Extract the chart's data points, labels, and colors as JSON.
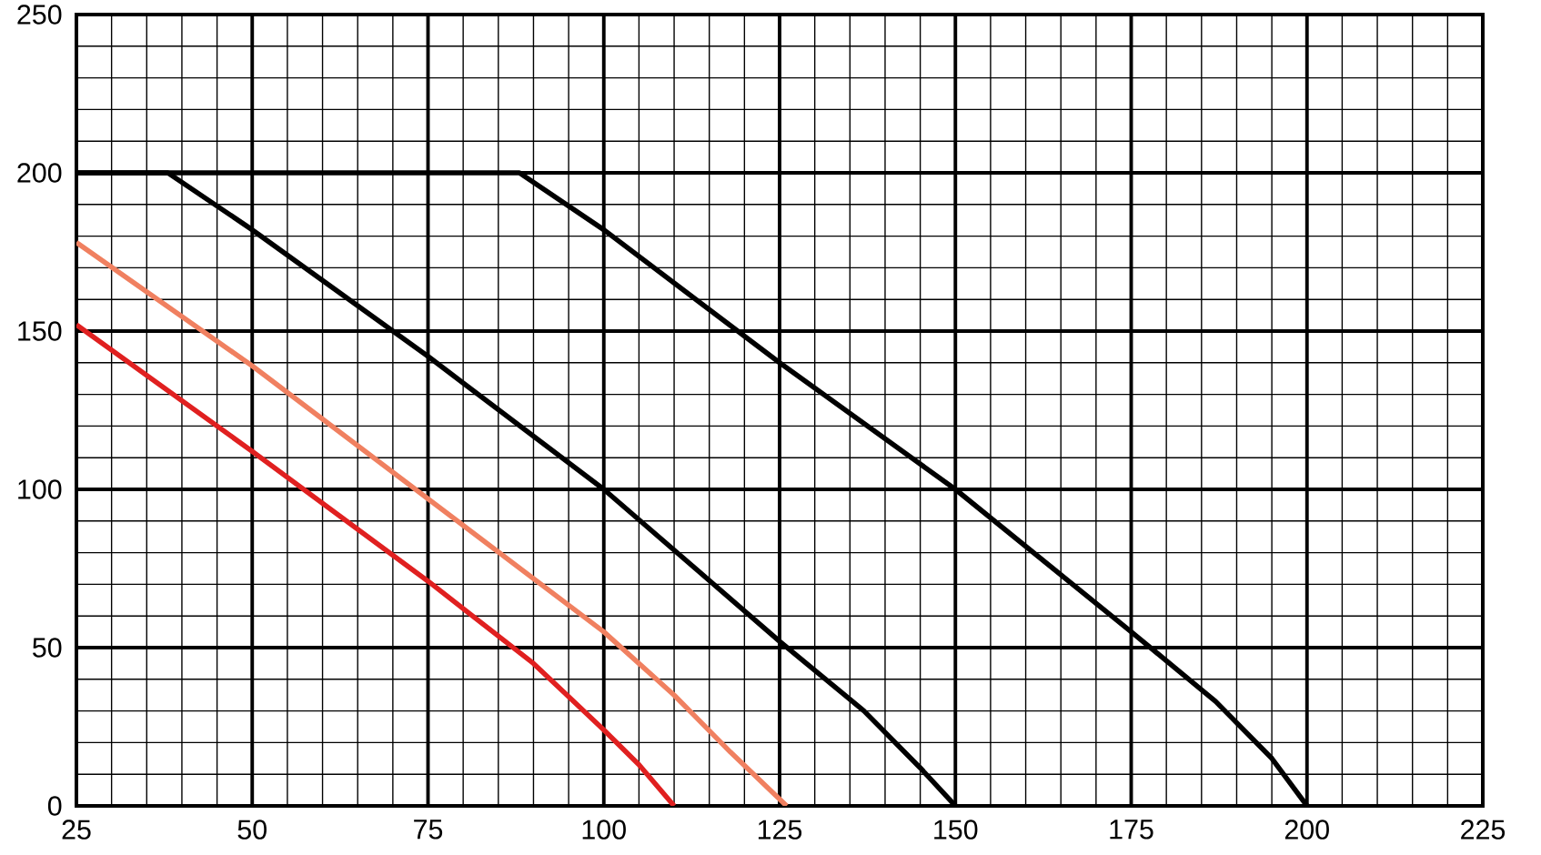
{
  "chart_data": {
    "type": "line",
    "xlim": [
      25,
      225
    ],
    "ylim": [
      0,
      250
    ],
    "xticks": [
      25,
      50,
      75,
      100,
      125,
      150,
      175,
      200,
      225
    ],
    "yticks": [
      0,
      50,
      100,
      150,
      200,
      250
    ],
    "grid": true,
    "marker": "none",
    "line_style": "solid",
    "series": [
      {
        "color": "#000000",
        "x": [
          25,
          38,
          50,
          75,
          100,
          125,
          137,
          145,
          150
        ],
        "values": [
          200,
          200,
          182,
          142,
          100,
          52,
          30,
          12,
          0
        ]
      },
      {
        "color": "#000000",
        "x": [
          25,
          88,
          100,
          125,
          150,
          175,
          187,
          195,
          200
        ],
        "values": [
          200,
          200,
          182,
          140,
          100,
          55,
          33,
          15,
          0
        ]
      },
      {
        "color": "#f08060",
        "x": [
          25,
          50,
          75,
          100,
          110,
          118,
          126
        ],
        "values": [
          178,
          139,
          97,
          55,
          35,
          17,
          0
        ]
      },
      {
        "color": "#e02020",
        "x": [
          25,
          50,
          75,
          90,
          100,
          105,
          110
        ],
        "values": [
          152,
          112,
          71,
          45,
          24,
          13,
          0
        ]
      }
    ]
  }
}
